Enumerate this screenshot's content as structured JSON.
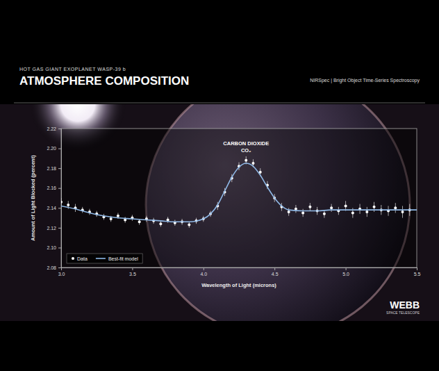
{
  "chart_data": {
    "type": "scatter",
    "subtitle": "HOT GAS GIANT EXOPLANET WASP-39 b",
    "title": "ATMOSPHERE COMPOSITION",
    "instrument": "NIRSpec | Bright Object Time-Series Spectroscopy",
    "logo": [
      "WEBB",
      "SPACE TELESCOPE"
    ],
    "annotations": [
      "CARBON DIOXIDE",
      "CO₂"
    ],
    "xlabel": "Wavelength of Light (microns)",
    "ylabel": "Amount of Light Blocked (percent)",
    "xlim": [
      3.0,
      5.5
    ],
    "xticks": [
      {
        "value": 3,
        "label": "3.0"
      },
      3.5,
      {
        "value": 4,
        "label": "4.0"
      },
      4.5,
      {
        "value": 5,
        "label": "5.0"
      },
      5.5
    ],
    "ylim": [
      2.08,
      2.22
    ],
    "yticks": [
      2.08,
      {
        "value": 2.1,
        "label": "2.10"
      },
      2.12,
      2.14,
      2.16,
      2.18,
      {
        "value": 2.2,
        "label": "2.20"
      },
      2.22
    ],
    "grid": false,
    "legend": "lower left",
    "series": [
      {
        "name": "Data",
        "type": "scatter",
        "marker": "circle",
        "color": "#ffffff",
        "x": [
          3.0,
          3.05,
          3.1,
          3.15,
          3.2,
          3.25,
          3.3,
          3.35,
          3.4,
          3.45,
          3.5,
          3.55,
          3.6,
          3.65,
          3.7,
          3.75,
          3.8,
          3.85,
          3.9,
          3.95,
          4.0,
          4.05,
          4.1,
          4.15,
          4.2,
          4.25,
          4.3,
          4.35,
          4.4,
          4.45,
          4.5,
          4.55,
          4.6,
          4.65,
          4.7,
          4.75,
          4.8,
          4.85,
          4.9,
          4.95,
          5.0,
          5.05,
          5.1,
          5.15,
          5.2,
          5.25,
          5.3,
          5.35,
          5.4,
          5.45
        ],
        "values": [
          2.146,
          2.143,
          2.14,
          2.138,
          2.136,
          2.134,
          2.131,
          2.129,
          2.132,
          2.128,
          2.13,
          2.126,
          2.129,
          2.127,
          2.124,
          2.128,
          2.125,
          2.126,
          2.123,
          2.127,
          2.129,
          2.134,
          2.142,
          2.156,
          2.17,
          2.182,
          2.188,
          2.185,
          2.176,
          2.163,
          2.15,
          2.141,
          2.136,
          2.139,
          2.135,
          2.141,
          2.137,
          2.134,
          2.14,
          2.137,
          2.142,
          2.135,
          2.139,
          2.136,
          2.141,
          2.138,
          2.137,
          2.14,
          2.136,
          2.138
        ],
        "errors": [
          0.004,
          0.004,
          0.004,
          0.003,
          0.003,
          0.003,
          0.003,
          0.003,
          0.003,
          0.003,
          0.003,
          0.003,
          0.003,
          0.003,
          0.003,
          0.003,
          0.003,
          0.003,
          0.003,
          0.003,
          0.003,
          0.003,
          0.004,
          0.004,
          0.004,
          0.004,
          0.004,
          0.004,
          0.004,
          0.004,
          0.004,
          0.004,
          0.004,
          0.004,
          0.004,
          0.004,
          0.004,
          0.004,
          0.004,
          0.004,
          0.005,
          0.005,
          0.005,
          0.005,
          0.005,
          0.005,
          0.005,
          0.005,
          0.006,
          0.006
        ]
      },
      {
        "name": "Best-fit model",
        "type": "line",
        "line_style": "solid",
        "color": "#8fb8e6",
        "x": [
          3.0,
          3.1,
          3.2,
          3.3,
          3.4,
          3.5,
          3.6,
          3.7,
          3.8,
          3.9,
          4.0,
          4.05,
          4.1,
          4.15,
          4.2,
          4.25,
          4.3,
          4.35,
          4.4,
          4.45,
          4.5,
          4.55,
          4.6,
          4.7,
          4.8,
          4.9,
          5.0,
          5.1,
          5.2,
          5.3,
          5.4,
          5.5
        ],
        "values": [
          2.142,
          2.139,
          2.135,
          2.132,
          2.13,
          2.129,
          2.128,
          2.127,
          2.126,
          2.126,
          2.129,
          2.134,
          2.143,
          2.157,
          2.171,
          2.181,
          2.185,
          2.182,
          2.173,
          2.161,
          2.15,
          2.142,
          2.138,
          2.137,
          2.137,
          2.138,
          2.138,
          2.138,
          2.138,
          2.138,
          2.138,
          2.138
        ]
      }
    ]
  }
}
